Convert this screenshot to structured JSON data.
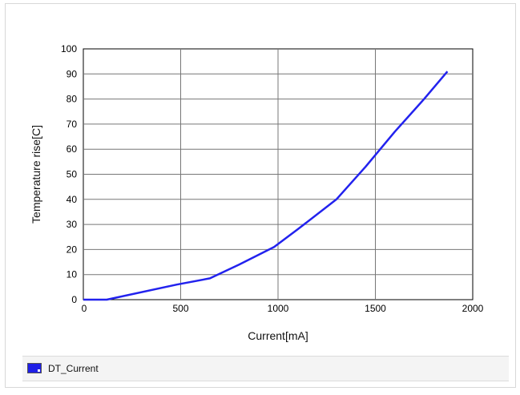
{
  "chart_data": {
    "type": "line",
    "title": "",
    "xlabel": "Current[mA]",
    "ylabel": "Temperature rise[C]",
    "xlim": [
      0,
      2000
    ],
    "ylim": [
      0,
      100
    ],
    "x_ticks": [
      "0",
      "500",
      "1000",
      "1500",
      "2000"
    ],
    "y_ticks": [
      "0",
      "10",
      "20",
      "30",
      "40",
      "50",
      "60",
      "70",
      "80",
      "90",
      "100"
    ],
    "grid": true,
    "legend_position": "bottom",
    "series": [
      {
        "name": "DT_Current",
        "color": "#2222ee",
        "x": [
          0,
          120,
          480,
          650,
          800,
          980,
          1100,
          1300,
          1450,
          1600,
          1750,
          1870
        ],
        "y": [
          0,
          0,
          6,
          8.5,
          14,
          21,
          28,
          40,
          53,
          67,
          80,
          91
        ]
      }
    ]
  }
}
